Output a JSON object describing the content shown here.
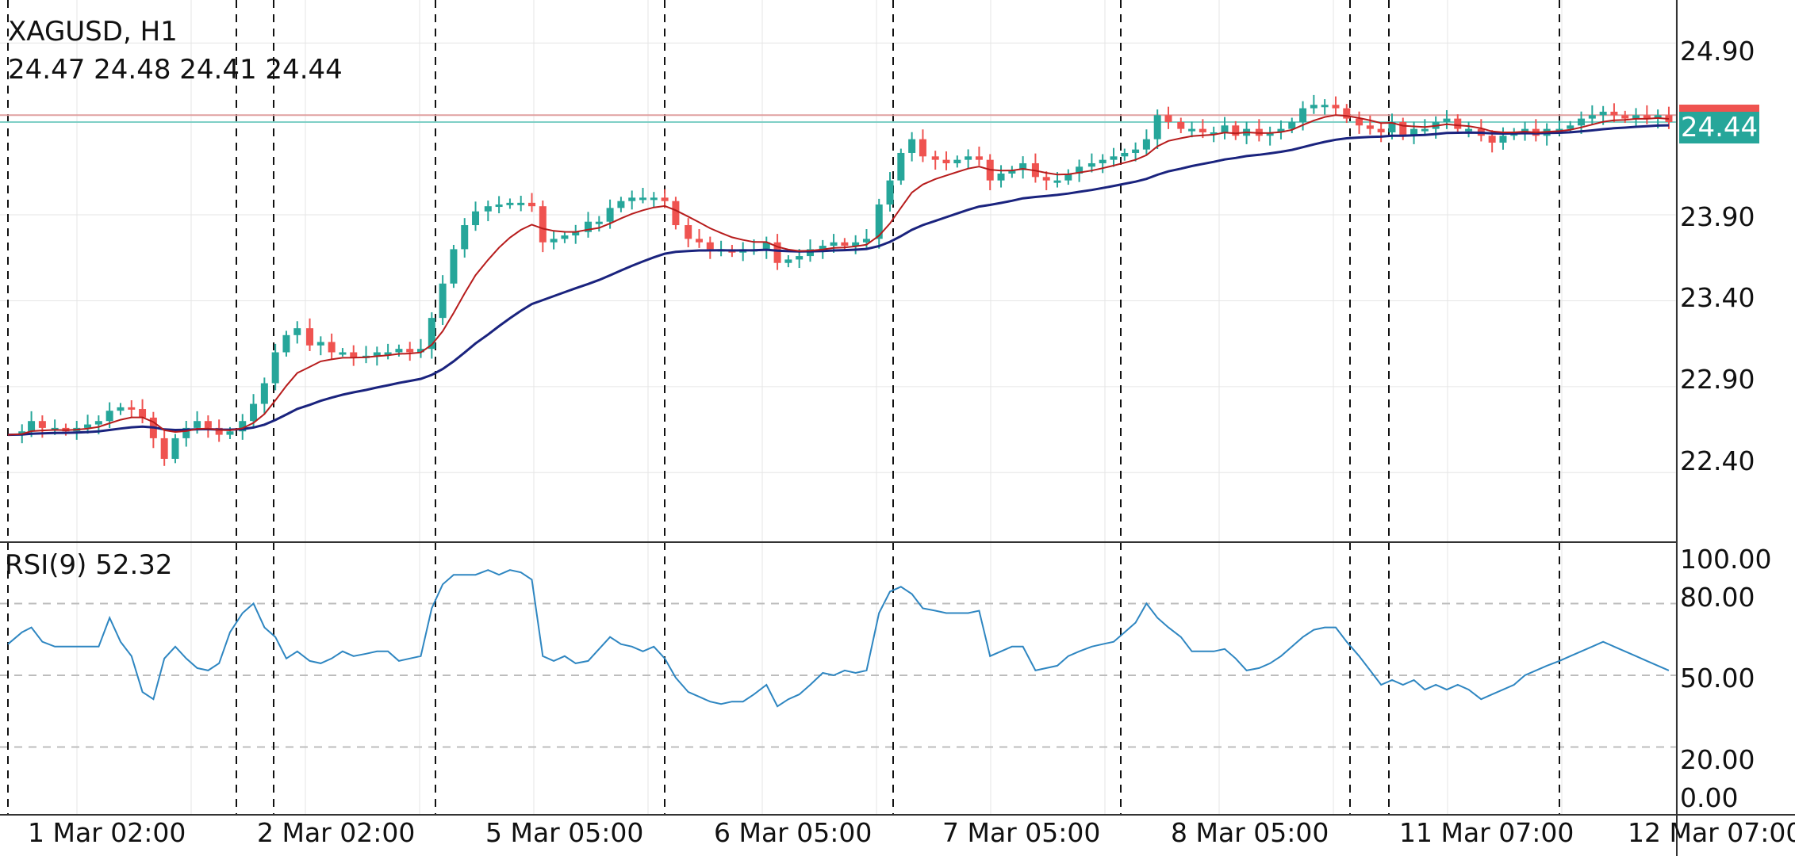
{
  "header": {
    "symbol_tf": "XAGUSD, H1",
    "ohlc": "24.47 24.48 24.41 24.44",
    "rsi_label": "RSI(9) 52.32"
  },
  "price_tag": "24.44",
  "colors": {
    "bull": "#26a69a",
    "bear": "#ef5350",
    "ma_fast": "#b71c1c",
    "ma_slow": "#1a237e",
    "rsi": "#2e86c1",
    "grid": "#e6e6e6",
    "dashed_vertical": "#111111"
  },
  "price_axis": {
    "ticks": [
      "24.90",
      "23.90",
      "23.40",
      "22.90",
      "22.40"
    ]
  },
  "rsi_axis": {
    "ticks": [
      "100.00",
      "80.00",
      "50.00",
      "20.00",
      "0.00"
    ]
  },
  "time_axis": {
    "ticks": [
      "1 Mar 02:00",
      "2 Mar 02:00",
      "5 Mar 05:00",
      "6 Mar 05:00",
      "7 Mar 05:00",
      "8 Mar 05:00",
      "11 Mar 07:00",
      "12 Mar 07:00"
    ]
  },
  "chart_data": [
    {
      "type": "candlestick",
      "title": "XAGUSD, H1",
      "ylim": [
        22.0,
        25.15
      ],
      "grid": true,
      "horizontal_levels": [
        24.48,
        24.44
      ],
      "moving_averages": [
        "fast (red)",
        "slow (dark blue)"
      ],
      "points": [
        [
          0,
          22.62
        ],
        [
          9,
          22.64
        ],
        [
          15,
          22.7
        ],
        [
          22,
          22.66
        ],
        [
          30,
          22.66
        ],
        [
          37,
          22.64
        ],
        [
          44,
          22.66
        ],
        [
          51,
          22.68
        ],
        [
          58,
          22.7
        ],
        [
          65,
          22.76
        ],
        [
          72,
          22.78
        ],
        [
          79,
          22.77
        ],
        [
          86,
          22.72
        ],
        [
          93,
          22.6
        ],
        [
          100,
          22.48
        ],
        [
          107,
          22.6
        ],
        [
          114,
          22.66
        ],
        [
          121,
          22.7
        ],
        [
          128,
          22.66
        ],
        [
          135,
          22.62
        ],
        [
          142,
          22.64
        ],
        [
          150,
          22.7
        ],
        [
          157,
          22.8
        ],
        [
          164,
          22.92
        ],
        [
          171,
          23.1
        ],
        [
          178,
          23.2
        ],
        [
          185,
          23.24
        ],
        [
          193,
          23.14
        ],
        [
          200,
          23.16
        ],
        [
          207,
          23.1
        ],
        [
          214,
          23.1
        ],
        [
          221,
          23.07
        ],
        [
          229,
          23.08
        ],
        [
          236,
          23.1
        ],
        [
          243,
          23.1
        ],
        [
          250,
          23.12
        ],
        [
          257,
          23.1
        ],
        [
          264,
          23.12
        ],
        [
          271,
          23.3
        ],
        [
          278,
          23.5
        ],
        [
          285,
          23.7
        ],
        [
          292,
          23.84
        ],
        [
          299,
          23.92
        ],
        [
          307,
          23.95
        ],
        [
          314,
          23.96
        ],
        [
          321,
          23.97
        ],
        [
          328,
          23.97
        ],
        [
          335,
          23.95
        ],
        [
          342,
          23.74
        ],
        [
          349,
          23.76
        ],
        [
          356,
          23.78
        ],
        [
          363,
          23.8
        ],
        [
          371,
          23.86
        ],
        [
          378,
          23.86
        ],
        [
          385,
          23.94
        ],
        [
          392,
          23.98
        ],
        [
          399,
          24.0
        ],
        [
          406,
          24.0
        ],
        [
          413,
          24.0
        ],
        [
          420,
          23.98
        ],
        [
          427,
          23.84
        ],
        [
          435,
          23.76
        ],
        [
          442,
          23.74
        ],
        [
          449,
          23.7
        ],
        [
          456,
          23.7
        ],
        [
          463,
          23.68
        ],
        [
          470,
          23.7
        ],
        [
          477,
          23.7
        ],
        [
          485,
          23.74
        ],
        [
          492,
          23.62
        ],
        [
          499,
          23.64
        ],
        [
          506,
          23.66
        ],
        [
          513,
          23.7
        ],
        [
          521,
          23.72
        ],
        [
          528,
          23.74
        ],
        [
          535,
          23.72
        ],
        [
          542,
          23.74
        ],
        [
          549,
          23.76
        ],
        [
          557,
          23.96
        ],
        [
          564,
          24.1
        ],
        [
          571,
          24.26
        ],
        [
          578,
          24.34
        ],
        [
          585,
          24.24
        ],
        [
          593,
          24.22
        ],
        [
          600,
          24.2
        ],
        [
          607,
          24.22
        ],
        [
          614,
          24.24
        ],
        [
          621,
          24.22
        ],
        [
          628,
          24.1
        ],
        [
          635,
          24.14
        ],
        [
          642,
          24.16
        ],
        [
          649,
          24.2
        ],
        [
          657,
          24.12
        ],
        [
          664,
          24.1
        ],
        [
          671,
          24.1
        ],
        [
          678,
          24.14
        ],
        [
          685,
          24.18
        ],
        [
          693,
          24.2
        ],
        [
          700,
          24.22
        ],
        [
          707,
          24.24
        ],
        [
          714,
          24.26
        ],
        [
          721,
          24.28
        ],
        [
          728,
          24.34
        ],
        [
          735,
          24.48
        ],
        [
          742,
          24.44
        ],
        [
          750,
          24.4
        ],
        [
          757,
          24.4
        ],
        [
          764,
          24.38
        ],
        [
          771,
          24.38
        ],
        [
          778,
          24.42
        ],
        [
          785,
          24.36
        ],
        [
          792,
          24.4
        ],
        [
          800,
          24.36
        ],
        [
          807,
          24.38
        ],
        [
          814,
          24.4
        ],
        [
          821,
          24.44
        ],
        [
          828,
          24.52
        ],
        [
          835,
          24.54
        ],
        [
          842,
          24.54
        ],
        [
          849,
          24.52
        ],
        [
          856,
          24.46
        ],
        [
          864,
          24.42
        ],
        [
          871,
          24.4
        ],
        [
          878,
          24.38
        ],
        [
          885,
          24.44
        ],
        [
          892,
          24.36
        ],
        [
          899,
          24.4
        ],
        [
          906,
          24.4
        ],
        [
          913,
          24.44
        ],
        [
          920,
          24.46
        ],
        [
          927,
          24.4
        ],
        [
          934,
          24.4
        ],
        [
          942,
          24.36
        ],
        [
          949,
          24.32
        ],
        [
          956,
          24.36
        ],
        [
          963,
          24.38
        ],
        [
          970,
          24.4
        ],
        [
          977,
          24.36
        ],
        [
          984,
          24.4
        ],
        [
          992,
          24.4
        ],
        [
          999,
          24.42
        ],
        [
          1006,
          24.46
        ],
        [
          1013,
          24.48
        ],
        [
          1020,
          24.5
        ],
        [
          1027,
          24.48
        ],
        [
          1034,
          24.46
        ],
        [
          1041,
          24.48
        ],
        [
          1048,
          24.46
        ],
        [
          1055,
          24.48
        ],
        [
          1062,
          24.44
        ]
      ]
    },
    {
      "type": "line",
      "title": "RSI(9) 52.32",
      "ylim": [
        -8,
        105
      ],
      "grid": true,
      "levels": [
        80,
        50,
        20
      ],
      "points": [
        [
          0,
          63
        ],
        [
          9,
          68
        ],
        [
          15,
          70
        ],
        [
          22,
          64
        ],
        [
          30,
          62
        ],
        [
          37,
          62
        ],
        [
          44,
          62
        ],
        [
          51,
          62
        ],
        [
          58,
          62
        ],
        [
          65,
          74
        ],
        [
          72,
          64
        ],
        [
          79,
          58
        ],
        [
          86,
          43
        ],
        [
          93,
          40
        ],
        [
          100,
          57
        ],
        [
          107,
          62
        ],
        [
          114,
          57
        ],
        [
          121,
          53
        ],
        [
          128,
          52
        ],
        [
          135,
          55
        ],
        [
          142,
          68
        ],
        [
          150,
          76
        ],
        [
          157,
          80
        ],
        [
          164,
          70
        ],
        [
          171,
          66
        ],
        [
          178,
          57
        ],
        [
          185,
          60
        ],
        [
          193,
          56
        ],
        [
          200,
          55
        ],
        [
          207,
          57
        ],
        [
          214,
          60
        ],
        [
          221,
          58
        ],
        [
          229,
          59
        ],
        [
          236,
          60
        ],
        [
          243,
          60
        ],
        [
          250,
          56
        ],
        [
          257,
          57
        ],
        [
          264,
          58
        ],
        [
          271,
          78
        ],
        [
          278,
          88
        ],
        [
          285,
          92
        ],
        [
          292,
          92
        ],
        [
          299,
          92
        ],
        [
          307,
          94
        ],
        [
          314,
          92
        ],
        [
          321,
          94
        ],
        [
          328,
          93
        ],
        [
          335,
          90
        ],
        [
          342,
          58
        ],
        [
          349,
          56
        ],
        [
          356,
          58
        ],
        [
          363,
          55
        ],
        [
          371,
          56
        ],
        [
          378,
          61
        ],
        [
          385,
          66
        ],
        [
          392,
          63
        ],
        [
          399,
          62
        ],
        [
          406,
          60
        ],
        [
          413,
          62
        ],
        [
          420,
          57
        ],
        [
          427,
          49
        ],
        [
          435,
          43
        ],
        [
          442,
          41
        ],
        [
          449,
          39
        ],
        [
          456,
          38
        ],
        [
          463,
          39
        ],
        [
          470,
          39
        ],
        [
          477,
          42
        ],
        [
          485,
          46
        ],
        [
          492,
          37
        ],
        [
          499,
          40
        ],
        [
          506,
          42
        ],
        [
          513,
          46
        ],
        [
          521,
          51
        ],
        [
          528,
          50
        ],
        [
          535,
          52
        ],
        [
          542,
          51
        ],
        [
          549,
          52
        ],
        [
          557,
          76
        ],
        [
          564,
          85
        ],
        [
          571,
          87
        ],
        [
          578,
          84
        ],
        [
          585,
          78
        ],
        [
          593,
          77
        ],
        [
          600,
          76
        ],
        [
          607,
          76
        ],
        [
          614,
          76
        ],
        [
          621,
          77
        ],
        [
          628,
          58
        ],
        [
          635,
          60
        ],
        [
          642,
          62
        ],
        [
          649,
          62
        ],
        [
          657,
          52
        ],
        [
          664,
          53
        ],
        [
          671,
          54
        ],
        [
          678,
          58
        ],
        [
          685,
          60
        ],
        [
          693,
          62
        ],
        [
          700,
          63
        ],
        [
          707,
          64
        ],
        [
          714,
          68
        ],
        [
          721,
          72
        ],
        [
          728,
          80
        ],
        [
          735,
          74
        ],
        [
          742,
          70
        ],
        [
          750,
          66
        ],
        [
          757,
          60
        ],
        [
          764,
          60
        ],
        [
          771,
          60
        ],
        [
          778,
          61
        ],
        [
          785,
          57
        ],
        [
          792,
          52
        ],
        [
          800,
          53
        ],
        [
          807,
          55
        ],
        [
          814,
          58
        ],
        [
          821,
          62
        ],
        [
          828,
          66
        ],
        [
          835,
          69
        ],
        [
          842,
          70
        ],
        [
          849,
          70
        ],
        [
          856,
          64
        ],
        [
          864,
          58
        ],
        [
          871,
          52
        ],
        [
          878,
          46
        ],
        [
          885,
          48
        ],
        [
          892,
          46
        ],
        [
          899,
          48
        ],
        [
          906,
          44
        ],
        [
          913,
          46
        ],
        [
          920,
          44
        ],
        [
          927,
          46
        ],
        [
          934,
          44
        ],
        [
          942,
          40
        ],
        [
          949,
          42
        ],
        [
          956,
          44
        ],
        [
          963,
          46
        ],
        [
          970,
          50
        ],
        [
          977,
          52
        ],
        [
          984,
          54
        ],
        [
          992,
          56
        ],
        [
          999,
          58
        ],
        [
          1006,
          60
        ],
        [
          1013,
          62
        ],
        [
          1020,
          64
        ],
        [
          1027,
          62
        ],
        [
          1034,
          60
        ],
        [
          1041,
          58
        ],
        [
          1048,
          56
        ],
        [
          1055,
          54
        ],
        [
          1062,
          52
        ]
      ]
    }
  ]
}
